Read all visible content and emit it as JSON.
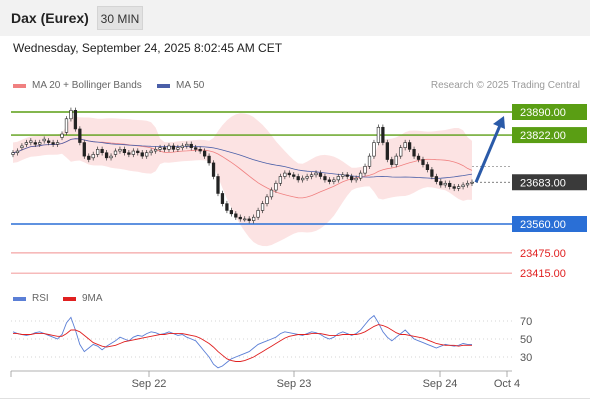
{
  "header": {
    "title": "Dax (Eurex)",
    "timeframe": "30 MIN"
  },
  "datetime": "Wednesday, September 24, 2025 8:02:45 AM CET",
  "legend": {
    "ma20_label": "MA 20 + Bollinger Bands",
    "ma50_label": "MA 50",
    "credit": "Research © 2025 Trading Central"
  },
  "colors": {
    "bollinger_fill": "#fcdede",
    "ma20": "#f08080",
    "ma50": "#4a5fa8",
    "resistance": "#5a9e14",
    "support": "#2a6fd6",
    "target": "#f4a4a4",
    "price_box": "#3a3a3a",
    "arrow": "#2a5aa8",
    "rsi": "#5b7fd6",
    "rsi_ma": "#e02020"
  },
  "levels": [
    {
      "label": "23890.00",
      "value": 23890,
      "kind": "resistance"
    },
    {
      "label": "23822.00",
      "value": 23822,
      "kind": "resistance"
    },
    {
      "label": "23683.00",
      "value": 23683,
      "kind": "current"
    },
    {
      "label": "23560.00",
      "value": 23560,
      "kind": "support"
    },
    {
      "label": "23475.00",
      "value": 23475,
      "kind": "target"
    },
    {
      "label": "23415.00",
      "value": 23415,
      "kind": "target"
    }
  ],
  "rsi_legend": {
    "rsi_label": "RSI",
    "ma_label": "9MA"
  },
  "rsi_axis": [
    "70",
    "50",
    "30"
  ],
  "x_axis": [
    "Sep 22",
    "Sep 23",
    "Sep 24",
    "Oct 4"
  ],
  "chart_data": {
    "type": "candlestick",
    "xlabel": "",
    "ylabel": "",
    "ylim": [
      23380,
      23930
    ],
    "series": [
      {
        "name": "MA 20 + Bollinger Bands"
      },
      {
        "name": "MA 50"
      }
    ],
    "closes": [
      23770,
      23775,
      23790,
      23800,
      23805,
      23795,
      23800,
      23810,
      23800,
      23795,
      23800,
      23825,
      23870,
      23895,
      23840,
      23800,
      23760,
      23750,
      23765,
      23780,
      23770,
      23755,
      23760,
      23775,
      23780,
      23770,
      23765,
      23775,
      23770,
      23760,
      23770,
      23775,
      23780,
      23785,
      23780,
      23790,
      23780,
      23785,
      23790,
      23795,
      23785,
      23780,
      23775,
      23760,
      23740,
      23700,
      23650,
      23620,
      23600,
      23590,
      23580,
      23575,
      23575,
      23570,
      23580,
      23600,
      23620,
      23640,
      23660,
      23680,
      23700,
      23710,
      23705,
      23700,
      23690,
      23695,
      23700,
      23705,
      23710,
      23700,
      23690,
      23685,
      23690,
      23700,
      23705,
      23700,
      23690,
      23695,
      23710,
      23730,
      23760,
      23800,
      23845,
      23800,
      23750,
      23735,
      23760,
      23785,
      23800,
      23780,
      23760,
      23750,
      23735,
      23720,
      23700,
      23685,
      23675,
      23680,
      23670,
      23665,
      23670,
      23675,
      23680,
      23683
    ],
    "opens": [
      23765,
      23770,
      23785,
      23795,
      23800,
      23800,
      23795,
      23805,
      23805,
      23800,
      23795,
      23815,
      23830,
      23870,
      23895,
      23840,
      23800,
      23760,
      23755,
      23765,
      23780,
      23770,
      23755,
      23765,
      23775,
      23780,
      23770,
      23765,
      23775,
      23770,
      23760,
      23770,
      23775,
      23780,
      23785,
      23780,
      23790,
      23780,
      23785,
      23790,
      23795,
      23785,
      23780,
      23775,
      23760,
      23740,
      23700,
      23650,
      23620,
      23600,
      23590,
      23580,
      23575,
      23575,
      23570,
      23580,
      23600,
      23620,
      23640,
      23660,
      23680,
      23700,
      23710,
      23705,
      23700,
      23690,
      23695,
      23700,
      23705,
      23710,
      23700,
      23690,
      23685,
      23690,
      23700,
      23705,
      23700,
      23690,
      23695,
      23710,
      23730,
      23760,
      23800,
      23845,
      23800,
      23750,
      23735,
      23760,
      23785,
      23800,
      23780,
      23760,
      23750,
      23735,
      23720,
      23700,
      23685,
      23675,
      23680,
      23670,
      23665,
      23670,
      23675,
      23680
    ],
    "rsi": [
      58,
      56,
      55,
      54,
      55,
      57,
      58,
      56,
      54,
      52,
      50,
      55,
      68,
      74,
      60,
      44,
      36,
      40,
      44,
      42,
      38,
      42,
      45,
      48,
      52,
      50,
      48,
      52,
      54,
      53,
      56,
      58,
      57,
      55,
      56,
      58,
      56,
      54,
      55,
      52,
      50,
      48,
      42,
      36,
      30,
      22,
      18,
      20,
      24,
      28,
      30,
      32,
      34,
      36,
      40,
      44,
      46,
      48,
      50,
      52,
      56,
      58,
      57,
      56,
      55,
      54,
      56,
      58,
      57,
      55,
      52,
      50,
      52,
      56,
      58,
      56,
      54,
      56,
      60,
      66,
      72,
      76,
      68,
      58,
      52,
      48,
      52,
      56,
      60,
      55,
      50,
      48,
      46,
      44,
      42,
      40,
      42,
      44,
      43,
      42,
      43,
      45,
      44,
      44
    ],
    "rsi_ma": [
      56,
      56,
      55,
      55,
      55,
      56,
      56,
      56,
      55,
      54,
      53,
      53,
      56,
      60,
      60,
      58,
      54,
      50,
      46,
      44,
      42,
      41,
      42,
      43,
      45,
      47,
      48,
      49,
      50,
      51,
      52,
      53,
      54,
      55,
      55,
      56,
      56,
      56,
      56,
      55,
      54,
      53,
      51,
      48,
      45,
      41,
      36,
      32,
      28,
      26,
      25,
      25,
      26,
      28,
      30,
      33,
      36,
      39,
      42,
      45,
      48,
      51,
      53,
      54,
      55,
      55,
      55,
      56,
      56,
      56,
      55,
      54,
      54,
      54,
      55,
      55,
      55,
      55,
      56,
      58,
      61,
      64,
      66,
      65,
      63,
      60,
      57,
      55,
      55,
      54,
      53,
      52,
      51,
      49,
      47,
      45,
      44,
      43,
      43,
      43,
      42,
      43,
      43,
      43
    ],
    "rsi_ylim": [
      20,
      80
    ],
    "x_ticks": [
      "Sep 22",
      "Sep 23",
      "Sep 24",
      "Oct 4"
    ]
  }
}
